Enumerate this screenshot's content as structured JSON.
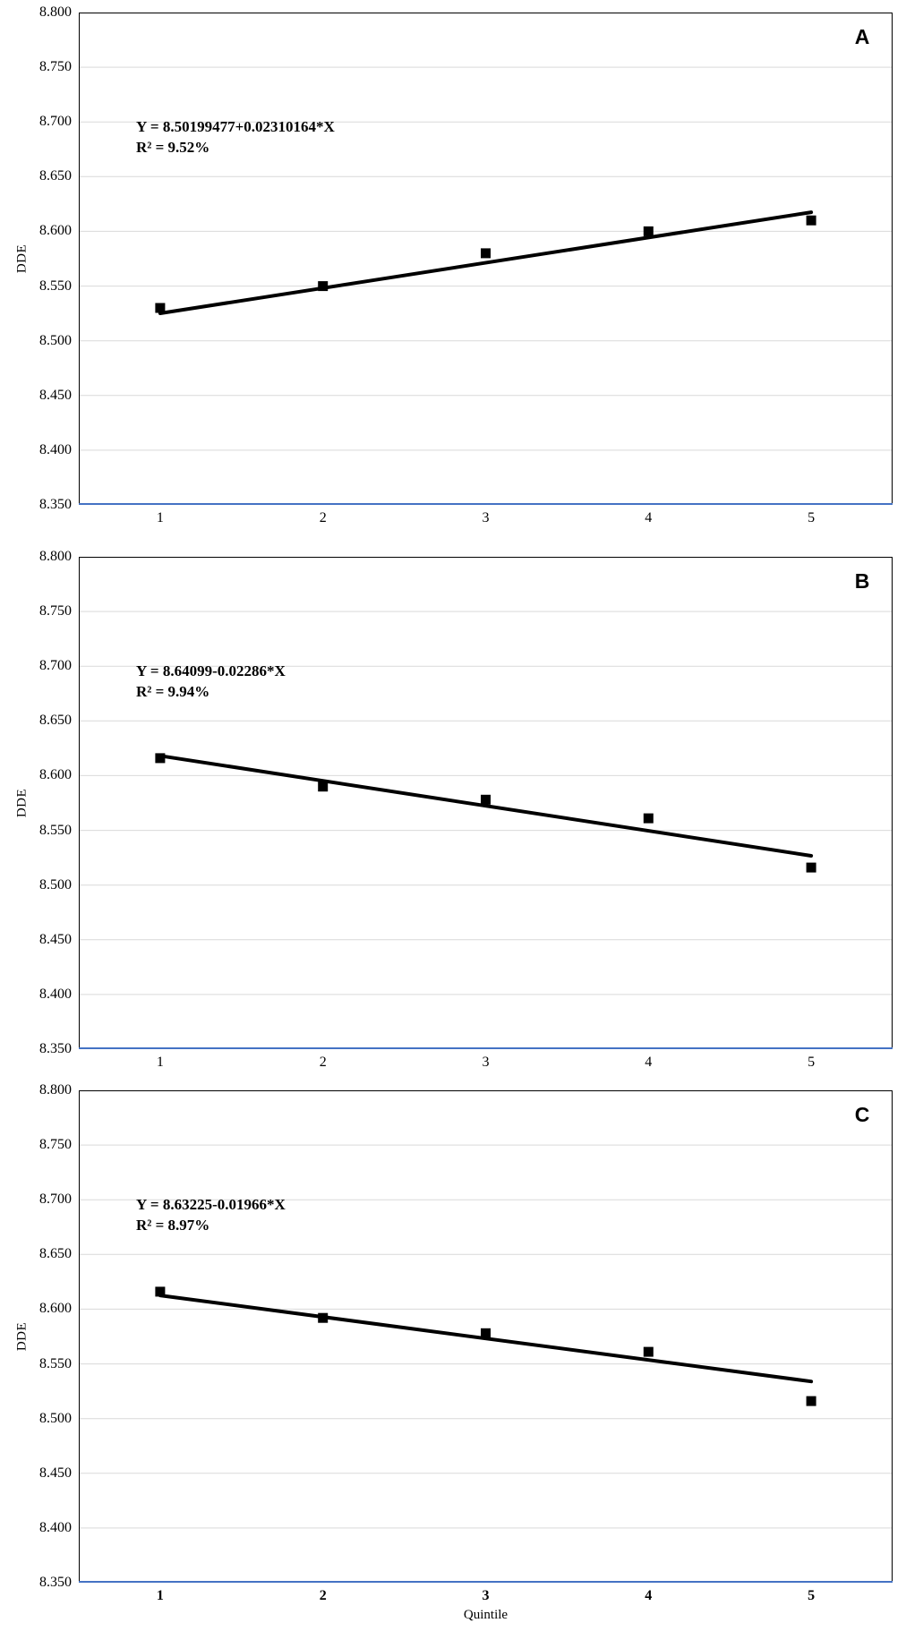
{
  "figure": {
    "x_axis_title": "Quintile",
    "y_axis_title": "DDE"
  },
  "colors": {
    "background": "#ffffff",
    "plot_border": "#000000",
    "gridline": "#d9d9d9",
    "x_axis_line": "#4472c4",
    "marker": "#000000",
    "trendline": "#000000",
    "text": "#000000"
  },
  "chart_data": [
    {
      "type": "scatter",
      "panel_label": "A",
      "ylabel": "DDE",
      "xlabel": "",
      "x": [
        1,
        2,
        3,
        4,
        5
      ],
      "xtick_labels": [
        "1",
        "2",
        "3",
        "4",
        "5"
      ],
      "ytick_labels": [
        "8.800",
        "8.750",
        "8.700",
        "8.650",
        "8.600",
        "8.550",
        "8.500",
        "8.450",
        "8.400",
        "8.350"
      ],
      "ylim": [
        8.35,
        8.8
      ],
      "ytick_step": 0.05,
      "grid": true,
      "legend": "none",
      "values": [
        8.53,
        8.55,
        8.58,
        8.6,
        8.61
      ],
      "trendline": {
        "equation": "Y = 8.50199477+0.02310164*X",
        "r_squared_label": "R² = 9.52%",
        "r_squared_pct": 9.52,
        "intercept": 8.50199477,
        "slope": 0.02310164
      }
    },
    {
      "type": "scatter",
      "panel_label": "B",
      "ylabel": "DDE",
      "xlabel": "",
      "x": [
        1,
        2,
        3,
        4,
        5
      ],
      "xtick_labels": [
        "1",
        "2",
        "3",
        "4",
        "5"
      ],
      "ytick_labels": [
        "8.800",
        "8.750",
        "8.700",
        "8.650",
        "8.600",
        "8.550",
        "8.500",
        "8.450",
        "8.400",
        "8.350"
      ],
      "ylim": [
        8.35,
        8.8
      ],
      "ytick_step": 0.05,
      "grid": true,
      "legend": "none",
      "values": [
        8.616,
        8.59,
        8.578,
        8.561,
        8.516
      ],
      "trendline": {
        "equation": "Y = 8.64099-0.02286*X",
        "r_squared_label": "R² = 9.94%",
        "r_squared_pct": 9.94,
        "intercept": 8.64099,
        "slope": -0.02286
      }
    },
    {
      "type": "scatter",
      "panel_label": "C",
      "ylabel": "DDE",
      "xlabel": "Quintile",
      "x": [
        1,
        2,
        3,
        4,
        5
      ],
      "xtick_labels": [
        "1",
        "2",
        "3",
        "4",
        "5"
      ],
      "ytick_labels": [
        "8.800",
        "8.750",
        "8.700",
        "8.650",
        "8.600",
        "8.550",
        "8.500",
        "8.450",
        "8.400",
        "8.350"
      ],
      "ylim": [
        8.35,
        8.8
      ],
      "ytick_step": 0.05,
      "grid": true,
      "legend": "none",
      "values": [
        8.616,
        8.592,
        8.578,
        8.561,
        8.516
      ],
      "trendline": {
        "equation": "Y = 8.63225-0.01966*X",
        "r_squared_label": "R² = 8.97%",
        "r_squared_pct": 8.97,
        "intercept": 8.63225,
        "slope": -0.01966
      }
    }
  ]
}
